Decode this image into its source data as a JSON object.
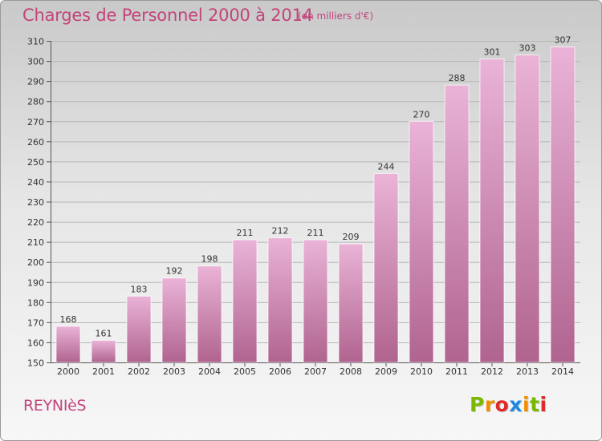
{
  "header": {
    "title": "Charges de Personnel 2000 à 2014",
    "subtitle": "(en milliers d'€)"
  },
  "footer": {
    "place": "REYNIèS",
    "logo": {
      "letters": [
        "P",
        "r",
        "o",
        "x",
        "i",
        "t",
        "i"
      ],
      "colors": [
        "#7ab800",
        "#f28c00",
        "#e02a2a",
        "#1e88e5",
        "#f28c00",
        "#7ab800",
        "#e02a2a"
      ]
    }
  },
  "colors": {
    "bar_light": "#eab3d7",
    "bar_dark": "#b0648f",
    "accent": "#c2447a"
  },
  "chart_data": {
    "type": "bar",
    "title": "Charges de Personnel 2000 à 2014",
    "ylabel": "(en milliers d'€)",
    "xlabel": "",
    "categories": [
      "2000",
      "2001",
      "2002",
      "2003",
      "2004",
      "2005",
      "2006",
      "2007",
      "2008",
      "2009",
      "2010",
      "2011",
      "2012",
      "2013",
      "2014"
    ],
    "values": [
      168,
      161,
      183,
      192,
      198,
      211,
      212,
      211,
      209,
      244,
      270,
      288,
      301,
      303,
      307
    ],
    "ylim": [
      150,
      310
    ],
    "yticks": [
      150,
      160,
      170,
      180,
      190,
      200,
      210,
      220,
      230,
      240,
      250,
      260,
      270,
      280,
      290,
      300,
      310
    ],
    "grid": true
  }
}
